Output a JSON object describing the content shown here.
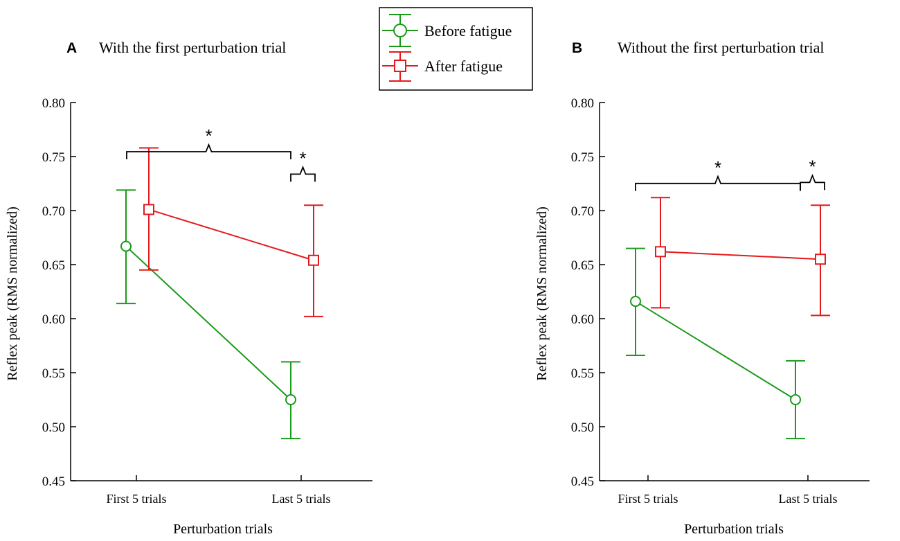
{
  "figure": {
    "legend": {
      "entries": [
        {
          "label": "Before fatigue",
          "color": "#1a9a1a",
          "marker": "circle"
        },
        {
          "label": "After fatigue",
          "color": "#e41a1c",
          "marker": "square"
        }
      ]
    }
  },
  "chart_data": [
    {
      "type": "line",
      "panel_label": "A",
      "title": "With the first perturbation trial",
      "xlabel": "Perturbation trials",
      "ylabel": "Reflex peak (RMS normalized)",
      "categories": [
        "First 5 trials",
        "Last 5 trials"
      ],
      "ylim": [
        0.45,
        0.8
      ],
      "yticks": [
        "0.80",
        "0.75",
        "0.70",
        "0.65",
        "0.60",
        "0.55",
        "0.50",
        "0.45"
      ],
      "series": [
        {
          "name": "Before fatigue",
          "values": [
            0.667,
            0.525
          ],
          "err_low": [
            0.614,
            0.489
          ],
          "err_high": [
            0.719,
            0.56
          ]
        },
        {
          "name": "After fatigue",
          "values": [
            0.701,
            0.654
          ],
          "err_low": [
            0.645,
            0.602
          ],
          "err_high": [
            0.758,
            0.705
          ]
        }
      ],
      "annotations": [
        {
          "type": "bracket",
          "label": "*",
          "from": "First 5 trials",
          "to": "Last 5 trials",
          "y": 0.75
        },
        {
          "type": "bracket",
          "label": "*",
          "from": "Last 5 trials",
          "to": "Last 5 trials",
          "y": 0.71
        }
      ]
    },
    {
      "type": "line",
      "panel_label": "B",
      "title": "Without the first perturbation trial",
      "xlabel": "Perturbation trials",
      "ylabel": "Reflex peak (RMS normalized)",
      "categories": [
        "First 5 trials",
        "Last 5 trials"
      ],
      "ylim": [
        0.45,
        0.8
      ],
      "yticks": [
        "0.80",
        "0.75",
        "0.70",
        "0.65",
        "0.60",
        "0.55",
        "0.50",
        "0.45"
      ],
      "series": [
        {
          "name": "Before fatigue",
          "values": [
            0.616,
            0.525
          ],
          "err_low": [
            0.566,
            0.489
          ],
          "err_high": [
            0.665,
            0.561
          ]
        },
        {
          "name": "After fatigue",
          "values": [
            0.662,
            0.655
          ],
          "err_low": [
            0.61,
            0.603
          ],
          "err_high": [
            0.712,
            0.705
          ]
        }
      ],
      "annotations": [
        {
          "type": "bracket",
          "label": "*",
          "from": "First 5 trials",
          "to": "Last 5 trials",
          "y": 0.72
        },
        {
          "type": "bracket",
          "label": "*",
          "from": "Last 5 trials",
          "to": "Last 5 trials",
          "y": 0.71
        }
      ]
    }
  ]
}
